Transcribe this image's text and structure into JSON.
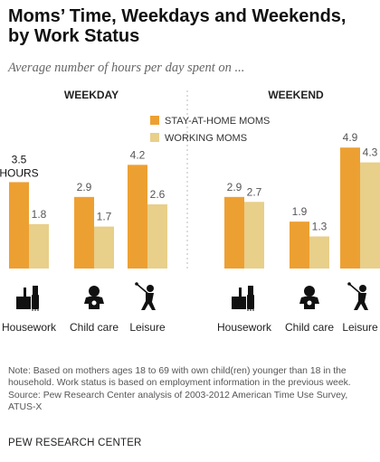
{
  "header": {
    "title_line1": "Moms’ Time, Weekdays and Weekends,",
    "title_line2": "by Work Status",
    "subtitle": "Average number of hours per day spent on ..."
  },
  "chart_data": {
    "type": "bar",
    "title": "Moms’ Time, Weekdays and Weekends, by Work Status",
    "subtitle": "Average number of hours per day spent on ...",
    "unit_label": "HOURS",
    "categories": [
      "Housework",
      "Child care",
      "Leisure"
    ],
    "panels": [
      {
        "name": "WEEKDAY",
        "series": [
          {
            "name": "STAY-AT-HOME MOMS",
            "values": [
              3.5,
              2.9,
              4.2
            ]
          },
          {
            "name": "WORKING MOMS",
            "values": [
              1.8,
              1.7,
              2.6
            ]
          }
        ]
      },
      {
        "name": "WEEKEND",
        "series": [
          {
            "name": "STAY-AT-HOME MOMS",
            "values": [
              2.9,
              1.9,
              4.9
            ]
          },
          {
            "name": "WORKING MOMS",
            "values": [
              2.7,
              1.3,
              4.3
            ]
          }
        ]
      }
    ],
    "legend": {
      "placement": "top-center",
      "entries": [
        "STAY-AT-HOME MOMS",
        "WORKING MOMS"
      ]
    },
    "ylim": [
      0,
      5.5
    ],
    "grid": false,
    "icons": [
      "housework-icon",
      "child-care-icon",
      "leisure-icon"
    ],
    "colors": {
      "stay_at_home": "#EDA032",
      "working": "#E8CF8A",
      "divider": "#bbbbbb"
    }
  },
  "footer": {
    "note_line1": "Note: Based on mothers ages 18 to 69 with own child(ren) younger than 18 in the",
    "note_line2": "household. Work status is based on employment information in the previous week.",
    "source_line1": "Source: Pew Research Center analysis of 2003-2012 American Time Use Survey,",
    "source_line2": "ATUS-X",
    "brand": "PEW RESEARCH CENTER"
  }
}
